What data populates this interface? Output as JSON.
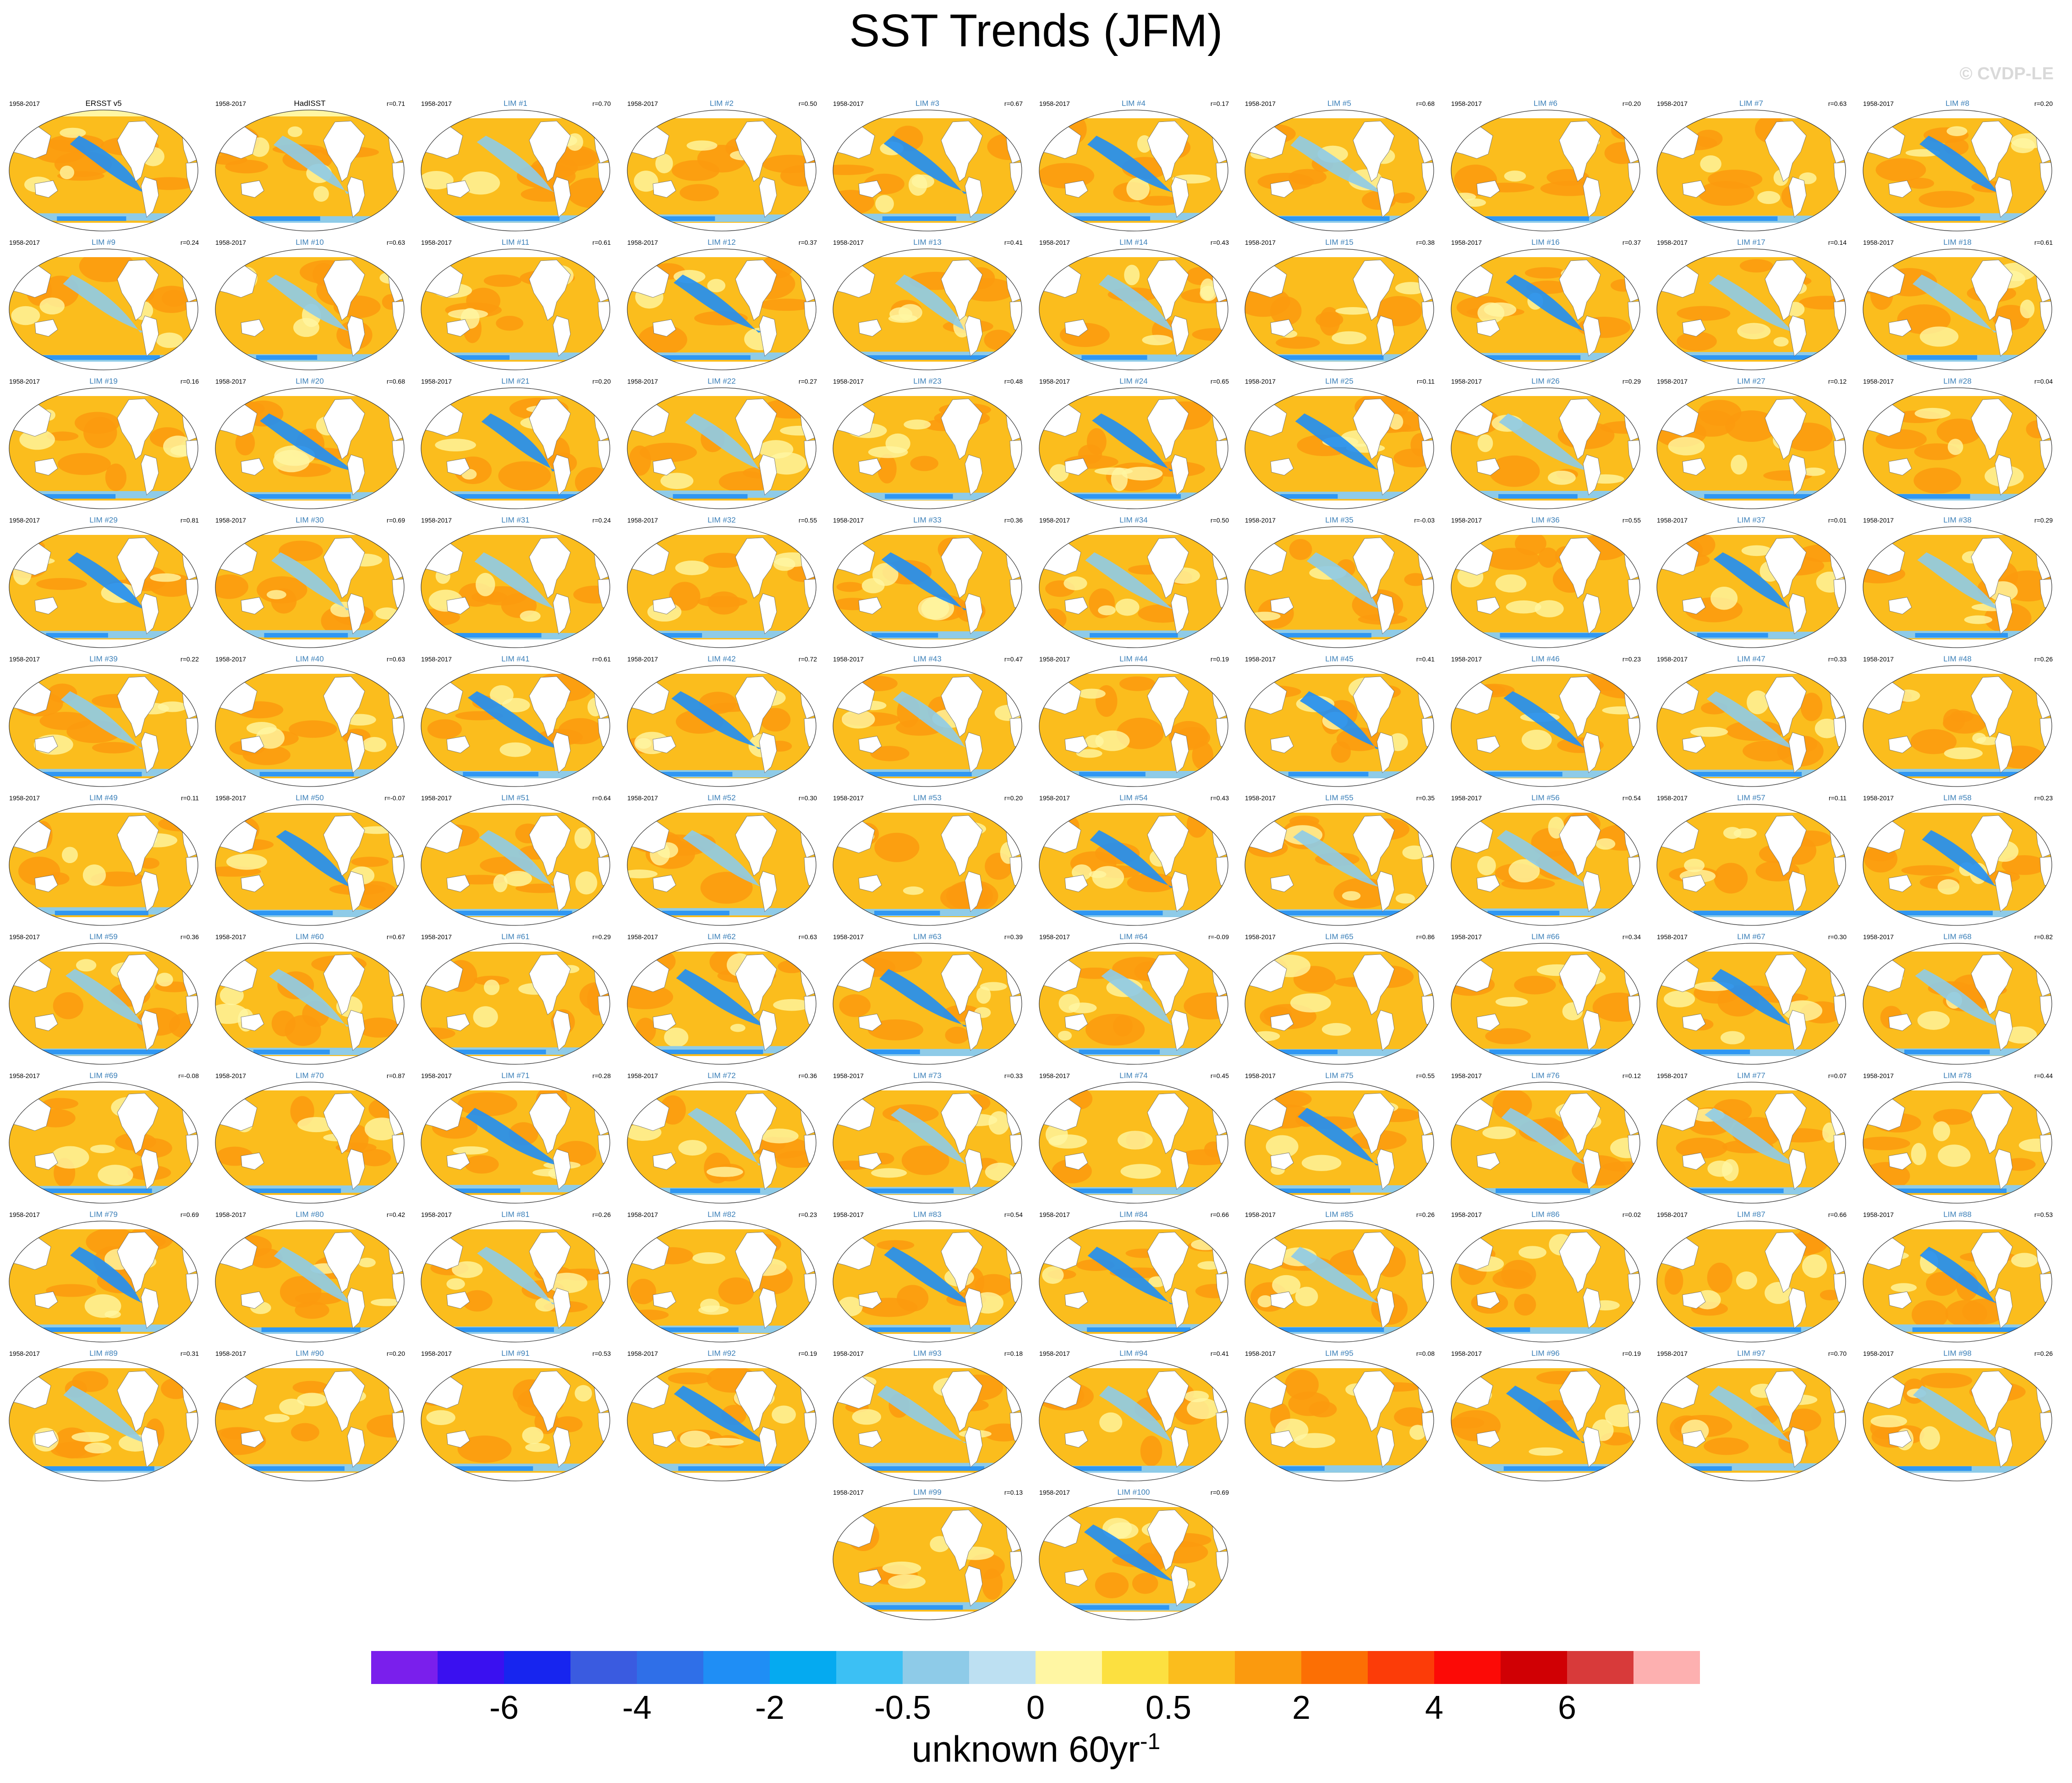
{
  "title": "SST Trends (JFM)",
  "watermark": "© CVDP-LE",
  "colorbar": {
    "colors": [
      "#7a1fec",
      "#3a10f0",
      "#1725ef",
      "#3a5be0",
      "#2f6fe8",
      "#1f8ef5",
      "#05aaf0",
      "#3cc0f4",
      "#8ecbe8",
      "#bde0f2",
      "#fff6a3",
      "#fce040",
      "#fbbd1d",
      "#fb9a0e",
      "#fc6f04",
      "#fc3c08",
      "#fc0a06",
      "#d00004",
      "#d83a3a",
      "#fdb0b0"
    ],
    "labels": [
      "-6",
      "-4",
      "-2",
      "-0.5",
      "0",
      "0.5",
      "2",
      "4",
      "6"
    ],
    "unit": "unknown 60yr",
    "unit_sup": "-1"
  },
  "chart_data": {
    "type": "heatmap",
    "description_variable": "SST trend",
    "season": "JFM",
    "period": "1958-2017",
    "panels": [
      {
        "title": "ERSST v5",
        "period": "1958-2017",
        "corr": "",
        "style": "obs"
      },
      {
        "title": "HadISST",
        "period": "1958-2017",
        "corr": "r=0.71",
        "style": "obs"
      },
      {
        "title": "LIM #1",
        "period": "1958-2017",
        "corr": "r=0.70"
      },
      {
        "title": "LIM #2",
        "period": "1958-2017",
        "corr": "r=0.50"
      },
      {
        "title": "LIM #3",
        "period": "1958-2017",
        "corr": "r=0.67"
      },
      {
        "title": "LIM #4",
        "period": "1958-2017",
        "corr": "r=0.17"
      },
      {
        "title": "LIM #5",
        "period": "1958-2017",
        "corr": "r=0.68"
      },
      {
        "title": "LIM #6",
        "period": "1958-2017",
        "corr": "r=0.20"
      },
      {
        "title": "LIM #7",
        "period": "1958-2017",
        "corr": "r=0.63"
      },
      {
        "title": "LIM #8",
        "period": "1958-2017",
        "corr": "r=0.20"
      },
      {
        "title": "LIM #9",
        "period": "1958-2017",
        "corr": "r=0.24"
      },
      {
        "title": "LIM #10",
        "period": "1958-2017",
        "corr": "r=0.63"
      },
      {
        "title": "LIM #11",
        "period": "1958-2017",
        "corr": "r=0.61"
      },
      {
        "title": "LIM #12",
        "period": "1958-2017",
        "corr": "r=0.37"
      },
      {
        "title": "LIM #13",
        "period": "1958-2017",
        "corr": "r=0.41"
      },
      {
        "title": "LIM #14",
        "period": "1958-2017",
        "corr": "r=0.43"
      },
      {
        "title": "LIM #15",
        "period": "1958-2017",
        "corr": "r=0.38"
      },
      {
        "title": "LIM #16",
        "period": "1958-2017",
        "corr": "r=0.37"
      },
      {
        "title": "LIM #17",
        "period": "1958-2017",
        "corr": "r=0.14"
      },
      {
        "title": "LIM #18",
        "period": "1958-2017",
        "corr": "r=0.61"
      },
      {
        "title": "LIM #19",
        "period": "1958-2017",
        "corr": "r=0.16"
      },
      {
        "title": "LIM #20",
        "period": "1958-2017",
        "corr": "r=0.68"
      },
      {
        "title": "LIM #21",
        "period": "1958-2017",
        "corr": "r=0.20"
      },
      {
        "title": "LIM #22",
        "period": "1958-2017",
        "corr": "r=0.27"
      },
      {
        "title": "LIM #23",
        "period": "1958-2017",
        "corr": "r=0.48"
      },
      {
        "title": "LIM #24",
        "period": "1958-2017",
        "corr": "r=0.65"
      },
      {
        "title": "LIM #25",
        "period": "1958-2017",
        "corr": "r=0.11"
      },
      {
        "title": "LIM #26",
        "period": "1958-2017",
        "corr": "r=0.29"
      },
      {
        "title": "LIM #27",
        "period": "1958-2017",
        "corr": "r=0.12"
      },
      {
        "title": "LIM #28",
        "period": "1958-2017",
        "corr": "r=0.04"
      },
      {
        "title": "LIM #29",
        "period": "1958-2017",
        "corr": "r=0.81"
      },
      {
        "title": "LIM #30",
        "period": "1958-2017",
        "corr": "r=0.69"
      },
      {
        "title": "LIM #31",
        "period": "1958-2017",
        "corr": "r=0.24"
      },
      {
        "title": "LIM #32",
        "period": "1958-2017",
        "corr": "r=0.55"
      },
      {
        "title": "LIM #33",
        "period": "1958-2017",
        "corr": "r=0.36"
      },
      {
        "title": "LIM #34",
        "period": "1958-2017",
        "corr": "r=0.50"
      },
      {
        "title": "LIM #35",
        "period": "1958-2017",
        "corr": "r=-0.03"
      },
      {
        "title": "LIM #36",
        "period": "1958-2017",
        "corr": "r=0.55"
      },
      {
        "title": "LIM #37",
        "period": "1958-2017",
        "corr": "r=0.01"
      },
      {
        "title": "LIM #38",
        "period": "1958-2017",
        "corr": "r=0.29"
      },
      {
        "title": "LIM #39",
        "period": "1958-2017",
        "corr": "r=0.22"
      },
      {
        "title": "LIM #40",
        "period": "1958-2017",
        "corr": "r=0.63"
      },
      {
        "title": "LIM #41",
        "period": "1958-2017",
        "corr": "r=0.61"
      },
      {
        "title": "LIM #42",
        "period": "1958-2017",
        "corr": "r=0.72"
      },
      {
        "title": "LIM #43",
        "period": "1958-2017",
        "corr": "r=0.47"
      },
      {
        "title": "LIM #44",
        "period": "1958-2017",
        "corr": "r=0.19"
      },
      {
        "title": "LIM #45",
        "period": "1958-2017",
        "corr": "r=0.41"
      },
      {
        "title": "LIM #46",
        "period": "1958-2017",
        "corr": "r=0.23"
      },
      {
        "title": "LIM #47",
        "period": "1958-2017",
        "corr": "r=0.33"
      },
      {
        "title": "LIM #48",
        "period": "1958-2017",
        "corr": "r=0.26"
      },
      {
        "title": "LIM #49",
        "period": "1958-2017",
        "corr": "r=0.11"
      },
      {
        "title": "LIM #50",
        "period": "1958-2017",
        "corr": "r=-0.07"
      },
      {
        "title": "LIM #51",
        "period": "1958-2017",
        "corr": "r=0.64"
      },
      {
        "title": "LIM #52",
        "period": "1958-2017",
        "corr": "r=0.30"
      },
      {
        "title": "LIM #53",
        "period": "1958-2017",
        "corr": "r=0.20"
      },
      {
        "title": "LIM #54",
        "period": "1958-2017",
        "corr": "r=0.43"
      },
      {
        "title": "LIM #55",
        "period": "1958-2017",
        "corr": "r=0.35"
      },
      {
        "title": "LIM #56",
        "period": "1958-2017",
        "corr": "r=0.54"
      },
      {
        "title": "LIM #57",
        "period": "1958-2017",
        "corr": "r=0.11"
      },
      {
        "title": "LIM #58",
        "period": "1958-2017",
        "corr": "r=0.23"
      },
      {
        "title": "LIM #59",
        "period": "1958-2017",
        "corr": "r=0.36"
      },
      {
        "title": "LIM #60",
        "period": "1958-2017",
        "corr": "r=0.67"
      },
      {
        "title": "LIM #61",
        "period": "1958-2017",
        "corr": "r=0.29"
      },
      {
        "title": "LIM #62",
        "period": "1958-2017",
        "corr": "r=0.63"
      },
      {
        "title": "LIM #63",
        "period": "1958-2017",
        "corr": "r=0.39"
      },
      {
        "title": "LIM #64",
        "period": "1958-2017",
        "corr": "r=-0.09"
      },
      {
        "title": "LIM #65",
        "period": "1958-2017",
        "corr": "r=0.86"
      },
      {
        "title": "LIM #66",
        "period": "1958-2017",
        "corr": "r=0.34"
      },
      {
        "title": "LIM #67",
        "period": "1958-2017",
        "corr": "r=0.30"
      },
      {
        "title": "LIM #68",
        "period": "1958-2017",
        "corr": "r=0.82"
      },
      {
        "title": "LIM #69",
        "period": "1958-2017",
        "corr": "r=-0.08"
      },
      {
        "title": "LIM #70",
        "period": "1958-2017",
        "corr": "r=0.87"
      },
      {
        "title": "LIM #71",
        "period": "1958-2017",
        "corr": "r=0.28"
      },
      {
        "title": "LIM #72",
        "period": "1958-2017",
        "corr": "r=0.36"
      },
      {
        "title": "LIM #73",
        "period": "1958-2017",
        "corr": "r=0.33"
      },
      {
        "title": "LIM #74",
        "period": "1958-2017",
        "corr": "r=0.45"
      },
      {
        "title": "LIM #75",
        "period": "1958-2017",
        "corr": "r=0.55"
      },
      {
        "title": "LIM #76",
        "period": "1958-2017",
        "corr": "r=0.12"
      },
      {
        "title": "LIM #77",
        "period": "1958-2017",
        "corr": "r=0.07"
      },
      {
        "title": "LIM #78",
        "period": "1958-2017",
        "corr": "r=0.44"
      },
      {
        "title": "LIM #79",
        "period": "1958-2017",
        "corr": "r=0.69"
      },
      {
        "title": "LIM #80",
        "period": "1958-2017",
        "corr": "r=0.42"
      },
      {
        "title": "LIM #81",
        "period": "1958-2017",
        "corr": "r=0.26"
      },
      {
        "title": "LIM #82",
        "period": "1958-2017",
        "corr": "r=0.23"
      },
      {
        "title": "LIM #83",
        "period": "1958-2017",
        "corr": "r=0.54"
      },
      {
        "title": "LIM #84",
        "period": "1958-2017",
        "corr": "r=0.66"
      },
      {
        "title": "LIM #85",
        "period": "1958-2017",
        "corr": "r=0.26"
      },
      {
        "title": "LIM #86",
        "period": "1958-2017",
        "corr": "r=0.02"
      },
      {
        "title": "LIM #87",
        "period": "1958-2017",
        "corr": "r=0.66"
      },
      {
        "title": "LIM #88",
        "period": "1958-2017",
        "corr": "r=0.53"
      },
      {
        "title": "LIM #89",
        "period": "1958-2017",
        "corr": "r=0.31"
      },
      {
        "title": "LIM #90",
        "period": "1958-2017",
        "corr": "r=0.20"
      },
      {
        "title": "LIM #91",
        "period": "1958-2017",
        "corr": "r=0.53"
      },
      {
        "title": "LIM #92",
        "period": "1958-2017",
        "corr": "r=0.19"
      },
      {
        "title": "LIM #93",
        "period": "1958-2017",
        "corr": "r=0.18"
      },
      {
        "title": "LIM #94",
        "period": "1958-2017",
        "corr": "r=0.41"
      },
      {
        "title": "LIM #95",
        "period": "1958-2017",
        "corr": "r=0.08"
      },
      {
        "title": "LIM #96",
        "period": "1958-2017",
        "corr": "r=0.19"
      },
      {
        "title": "LIM #97",
        "period": "1958-2017",
        "corr": "r=0.70"
      },
      {
        "title": "LIM #98",
        "period": "1958-2017",
        "corr": "r=0.26"
      },
      {
        "title": "LIM #99",
        "period": "1958-2017",
        "corr": "r=0.13"
      },
      {
        "title": "LIM #100",
        "period": "1958-2017",
        "corr": "r=0.69"
      }
    ]
  },
  "colors": {
    "model_title": "#3a7fb8",
    "obs_title": "#000000",
    "ocean_warm": "#fbbd1d",
    "ocean_warmer": "#fb9a0e",
    "ocean_cool": "#8ecbe8",
    "ocean_cold": "#1f8ef5",
    "land": "#ffffff"
  }
}
